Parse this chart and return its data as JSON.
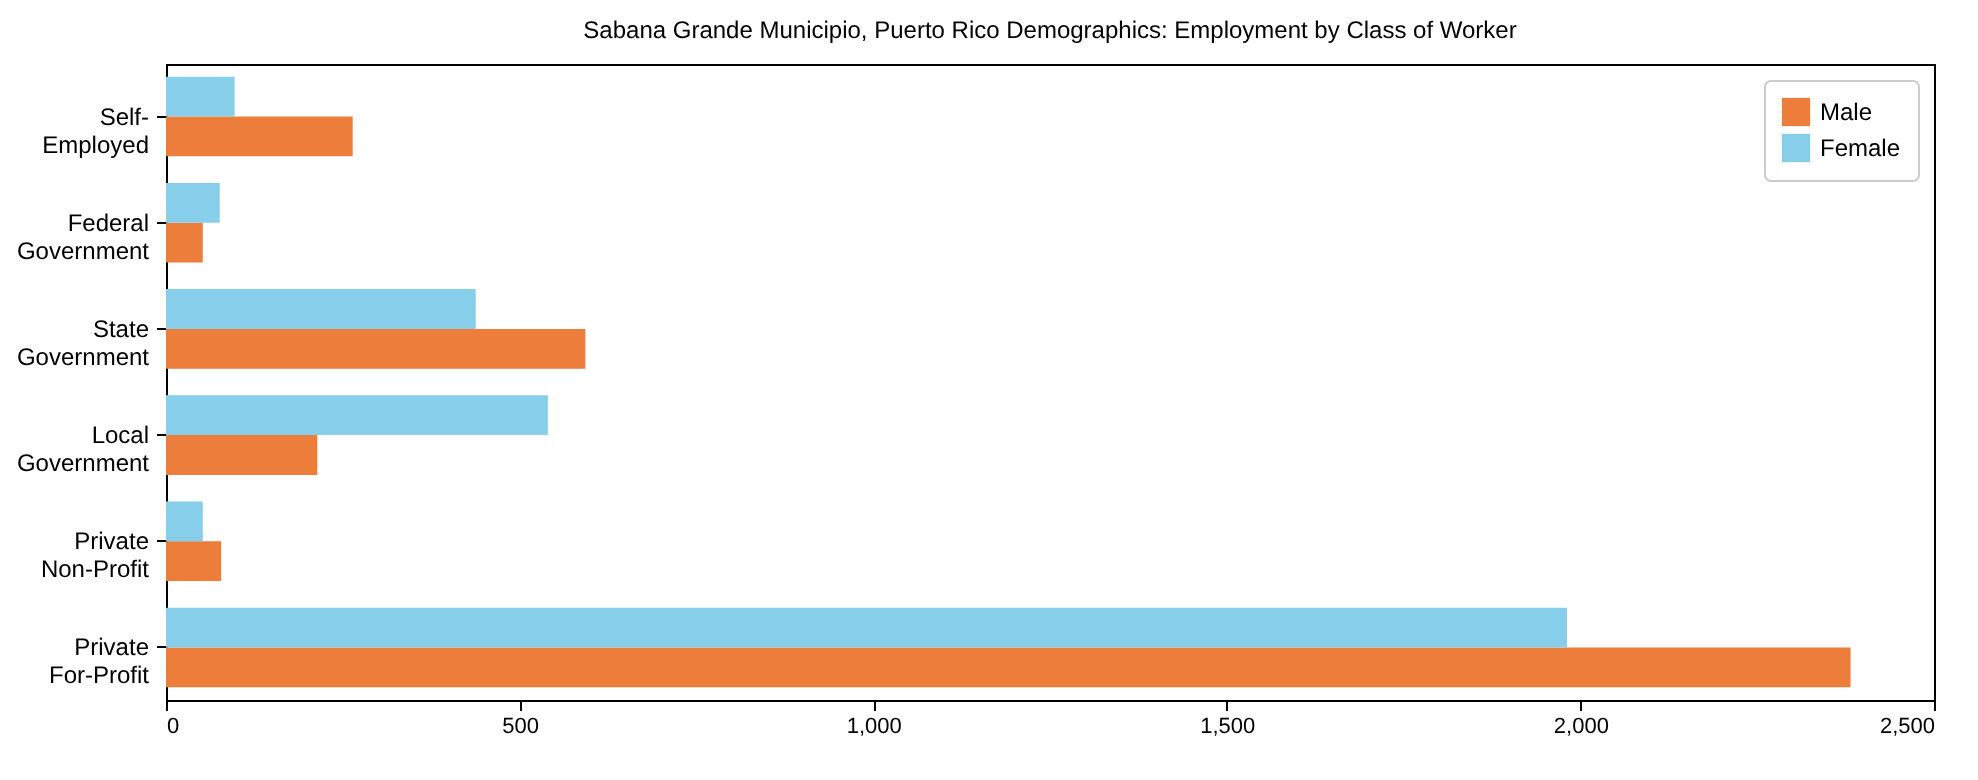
{
  "chart_data": {
    "type": "bar",
    "orientation": "horizontal",
    "title": "Sabana Grande Municipio, Puerto Rico Demographics: Employment by Class of Worker",
    "categories": [
      "Self-Employed",
      "Federal Government",
      "State Government",
      "Local Government",
      "Private Non-Profit",
      "Private For-Profit"
    ],
    "series": [
      {
        "name": "Male",
        "color": "#ed7d3a",
        "values": [
          264,
          52,
          593,
          214,
          78,
          2382
        ]
      },
      {
        "name": "Female",
        "color": "#87ceeb",
        "values": [
          97,
          76,
          438,
          540,
          52,
          1981
        ]
      }
    ],
    "xlim": [
      0,
      2500
    ],
    "xticks": [
      0,
      500,
      {
        "value": 1000,
        "label": "1,000"
      },
      {
        "value": 1500,
        "label": "1,500"
      },
      {
        "value": 2000,
        "label": "2,000"
      },
      {
        "value": 2500,
        "label": "2,500"
      }
    ],
    "grid": false,
    "legend": "top right"
  }
}
